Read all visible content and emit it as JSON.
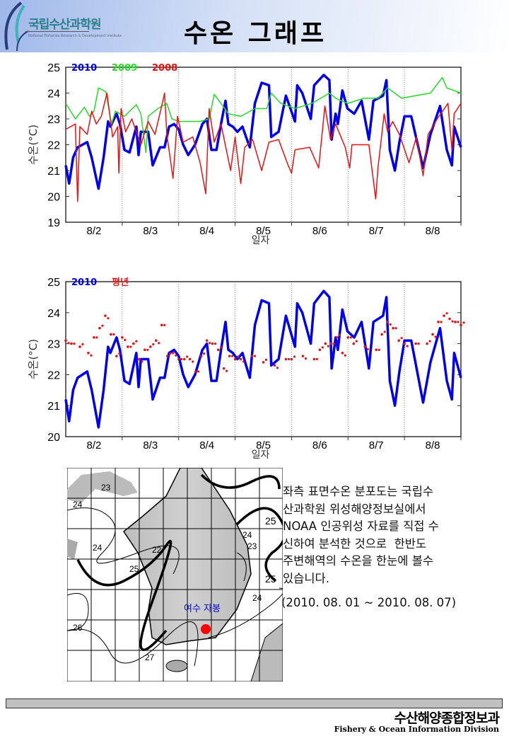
{
  "header": {
    "logo_text": "국립수산과학원",
    "logo_subtext": "National Fisheries Research & Development Institute",
    "title": "수온 그래프"
  },
  "colors": {
    "y2010": "#0000ee",
    "y2009": "#22dd22",
    "y2008": "#ee1111",
    "normal": "#ee1111"
  },
  "chart_data": [
    {
      "type": "line",
      "ylabel": "수온(°C)",
      "xlabel": "일자",
      "ylim": [
        19,
        25
      ],
      "xlim": [
        2,
        9
      ],
      "yticks": [
        "19",
        "20",
        "21",
        "22",
        "23",
        "24",
        "25"
      ],
      "xticks": [
        "8/2",
        "8/3",
        "8/4",
        "8/5",
        "8/6",
        "8/7",
        "8/8"
      ],
      "grid": "vertical dotted day separators",
      "legend": "top-left",
      "series": [
        {
          "name": "2010",
          "color": "#0000ee",
          "x": [
            2.0,
            2.06,
            2.13,
            2.21,
            2.38,
            2.46,
            2.58,
            2.67,
            2.75,
            2.79,
            2.9,
            2.96,
            3.04,
            3.13,
            3.25,
            3.29,
            3.33,
            3.46,
            3.54,
            3.67,
            3.75,
            3.83,
            3.92,
            4.0,
            4.08,
            4.17,
            4.29,
            4.42,
            4.5,
            4.58,
            4.67,
            4.75,
            4.83,
            4.88,
            4.96,
            5.04,
            5.13,
            5.21,
            5.26,
            5.35,
            5.47,
            5.6,
            5.64,
            5.77,
            5.9,
            6.06,
            6.1,
            6.19,
            6.34,
            6.4,
            6.57,
            6.67,
            6.71,
            6.78,
            6.82,
            6.9,
            6.99,
            7.11,
            7.24,
            7.37,
            7.45,
            7.62,
            7.68,
            7.74,
            7.83,
            7.91,
            8.0,
            8.12,
            8.33,
            8.46,
            8.63,
            8.75,
            8.84,
            8.88,
            9.0
          ],
          "y": [
            21.2,
            20.5,
            21.5,
            21.9,
            22.1,
            21.5,
            20.3,
            21.5,
            22.9,
            22.7,
            23.2,
            22.8,
            21.8,
            21.7,
            22.7,
            21.6,
            22.5,
            22.5,
            21.2,
            21.9,
            21.9,
            22.7,
            22.8,
            22.6,
            22.0,
            21.6,
            22.0,
            22.8,
            23.0,
            21.8,
            21.8,
            22.8,
            23.7,
            22.8,
            22.7,
            22.5,
            22.7,
            22.2,
            21.9,
            23.6,
            24.4,
            24.3,
            22.3,
            22.5,
            23.9,
            22.9,
            24.3,
            24.0,
            23.0,
            24.3,
            24.7,
            24.5,
            22.2,
            23.2,
            22.8,
            24.1,
            23.4,
            23.2,
            23.7,
            22.2,
            23.7,
            23.9,
            24.5,
            21.8,
            21.0,
            22.1,
            23.1,
            23.1,
            21.1,
            22.4,
            23.5,
            21.8,
            21.2,
            22.7,
            21.9
          ]
        },
        {
          "name": "2009",
          "color": "#22dd22",
          "x": [
            2.0,
            2.17,
            2.33,
            2.42,
            2.5,
            2.58,
            2.71,
            2.81,
            2.88,
            3.04,
            3.25,
            3.33,
            3.42,
            3.46,
            3.63,
            3.79,
            3.88,
            4.0,
            4.38,
            4.54,
            4.63,
            4.75,
            4.88,
            5.1,
            5.35,
            5.56,
            5.64,
            5.81,
            6.06,
            6.36,
            6.67,
            6.78,
            6.99,
            7.28,
            7.53,
            7.7,
            7.95,
            8.46,
            8.67,
            8.75,
            9.0
          ],
          "y": [
            23.6,
            23.0,
            23.45,
            23.1,
            23.3,
            24.2,
            24.05,
            22.8,
            23.3,
            23.1,
            23.55,
            23.2,
            21.7,
            23.1,
            23.4,
            23.6,
            23.0,
            22.9,
            22.9,
            23.0,
            23.95,
            23.6,
            23.2,
            23.1,
            23.4,
            23.4,
            24.0,
            23.6,
            23.4,
            23.6,
            24.0,
            23.8,
            23.6,
            23.8,
            23.8,
            24.2,
            23.8,
            24.0,
            24.6,
            24.2,
            24.0
          ]
        },
        {
          "name": "2008",
          "color": "#ee1111",
          "x": [
            2.0,
            2.17,
            2.21,
            2.25,
            2.38,
            2.46,
            2.54,
            2.63,
            2.73,
            2.83,
            2.92,
            2.94,
            2.98,
            3.06,
            3.17,
            3.33,
            3.46,
            3.58,
            3.71,
            3.75,
            3.79,
            3.9,
            3.98,
            4.08,
            4.25,
            4.38,
            4.48,
            4.54,
            4.63,
            4.75,
            4.92,
            5.0,
            5.1,
            5.17,
            5.31,
            5.47,
            5.6,
            5.77,
            5.94,
            6.0,
            6.06,
            6.32,
            6.48,
            6.59,
            6.69,
            6.78,
            6.95,
            7.03,
            7.07,
            7.37,
            7.49,
            7.53,
            7.64,
            7.7,
            7.79,
            7.91,
            8.08,
            8.21,
            8.33,
            8.42,
            8.58,
            8.77,
            8.84,
            8.88,
            9.0
          ],
          "y": [
            22.6,
            22.8,
            19.8,
            22.7,
            22.4,
            23.3,
            22.8,
            23.1,
            24.0,
            22.3,
            22.7,
            20.9,
            23.4,
            22.5,
            23.0,
            22.0,
            22.9,
            22.4,
            23.6,
            24.0,
            22.4,
            20.7,
            23.1,
            22.1,
            22.3,
            21.3,
            20.1,
            23.4,
            22.1,
            22.8,
            21.0,
            22.3,
            20.5,
            21.9,
            22.2,
            21.0,
            22.1,
            22.2,
            21.2,
            20.9,
            21.8,
            21.9,
            21.1,
            23.5,
            22.2,
            22.8,
            21.9,
            21.1,
            22.0,
            22.0,
            19.9,
            21.1,
            23.2,
            22.5,
            22.9,
            22.4,
            21.3,
            22.3,
            20.8,
            22.4,
            23.0,
            23.6,
            21.8,
            23.2,
            23.6
          ]
        }
      ]
    },
    {
      "type": "scatter",
      "ylabel": "수온(°C)",
      "xlabel": "일자",
      "ylim": [
        20,
        25
      ],
      "xlim": [
        2,
        9
      ],
      "yticks": [
        "20",
        "21",
        "22",
        "23",
        "24",
        "25"
      ],
      "xticks": [
        "8/2",
        "8/3",
        "8/4",
        "8/5",
        "8/6",
        "8/7",
        "8/8"
      ],
      "grid": "vertical dotted day separators",
      "legend": "top-left",
      "series": [
        {
          "name": "2010",
          "color": "#0000ee",
          "style": "line",
          "ref": "2010"
        },
        {
          "name": "평년",
          "color": "#ee1111",
          "style": "dots",
          "x": [
            2.0,
            2.1,
            2.25,
            2.4,
            2.5,
            2.6,
            2.7,
            2.8,
            2.9,
            3.0,
            3.1,
            3.2,
            3.3,
            3.4,
            3.5,
            3.6,
            3.7,
            3.8,
            3.9,
            4.0,
            4.1,
            4.2,
            4.3,
            4.4,
            4.5,
            4.6,
            4.7,
            4.8,
            4.9,
            5.0,
            5.1,
            5.3,
            5.5,
            5.7,
            5.9,
            6.0,
            6.2,
            6.4,
            6.5,
            6.6,
            6.7,
            6.8,
            6.9,
            7.0,
            7.1,
            7.3,
            7.5,
            7.6,
            7.7,
            7.8,
            7.9,
            8.0,
            8.2,
            8.4,
            8.5,
            8.6,
            8.7,
            8.8,
            8.9,
            9.0
          ],
          "y": [
            23.1,
            23.0,
            22.9,
            22.7,
            23.2,
            23.5,
            23.9,
            23.3,
            22.6,
            23.2,
            22.9,
            23.0,
            22.5,
            22.8,
            22.9,
            23.1,
            23.6,
            22.6,
            22.7,
            22.5,
            22.5,
            22.5,
            22.1,
            22.6,
            23.1,
            23.0,
            22.8,
            22.2,
            22.6,
            22.5,
            22.5,
            22.6,
            22.4,
            22.3,
            22.5,
            22.5,
            22.6,
            22.5,
            22.8,
            23.0,
            23.0,
            23.2,
            22.7,
            23.2,
            23.0,
            22.9,
            22.8,
            23.3,
            23.7,
            23.5,
            23.1,
            23.0,
            23.0,
            23.0,
            23.3,
            23.7,
            23.9,
            23.8,
            23.7,
            23.6
          ]
        }
      ]
    }
  ],
  "map": {
    "contour_labels": [
      "23",
      "24",
      "24",
      "22",
      "25",
      "26",
      "27",
      "24",
      "23",
      "25",
      "25",
      "24"
    ],
    "station_label": "여수 자봉",
    "station_color": "#ff0000"
  },
  "description": {
    "lines": [
      "좌측 표면수온 분포도는 국립수",
      "산과학원 위성해양정보실에서",
      "NOAA 인공위성 자료를 직접 수",
      "신하여 분석한 것으로  한반도",
      "주변해역의 수온을 한눈에 볼수",
      "있습니다."
    ],
    "period": "(2010. 08. 01 ~ 2010. 08. 07)"
  },
  "footer": {
    "org_ko": "수산해양종합정보과",
    "org_en": "Fishery & Ocean Information Division"
  }
}
